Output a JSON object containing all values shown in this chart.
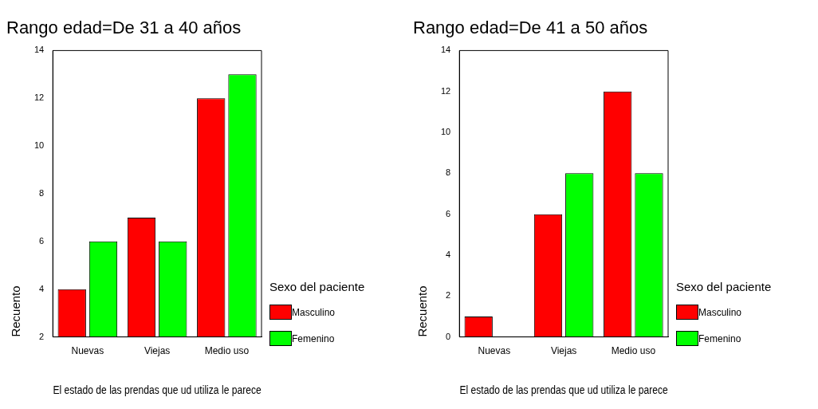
{
  "chart_data": [
    {
      "type": "bar",
      "title": "Rango edad=De 31 a 40 años",
      "xlabel": "El estado de las prendas que ud utiliza le parece",
      "ylabel": "Recuento",
      "legend_title": "Sexo del paciente",
      "legend": "right",
      "categories": [
        "Nuevas",
        "Viejas",
        "Medio uso"
      ],
      "series": [
        {
          "name": "Masculino",
          "color": "#ff0000",
          "values": [
            4,
            7,
            12
          ]
        },
        {
          "name": "Femenino",
          "color": "#00ff00",
          "values": [
            6,
            6,
            13
          ]
        }
      ],
      "ylim": [
        2,
        14
      ],
      "yticks": [
        2,
        4,
        6,
        8,
        10,
        12,
        14
      ],
      "grid": false
    },
    {
      "type": "bar",
      "title": "Rango edad=De 41 a 50 años",
      "xlabel": "El estado de las prendas que ud utiliza le parece",
      "ylabel": "Recuento",
      "legend_title": "Sexo del paciente",
      "legend": "right",
      "categories": [
        "Nuevas",
        "Viejas",
        "Medio uso"
      ],
      "series": [
        {
          "name": "Masculino",
          "color": "#ff0000",
          "values": [
            1,
            6,
            12
          ]
        },
        {
          "name": "Femenino",
          "color": "#00ff00",
          "values": [
            0,
            8,
            8
          ]
        }
      ],
      "ylim": [
        0,
        14
      ],
      "yticks": [
        0,
        2,
        4,
        6,
        8,
        10,
        12,
        14
      ],
      "grid": false
    }
  ]
}
